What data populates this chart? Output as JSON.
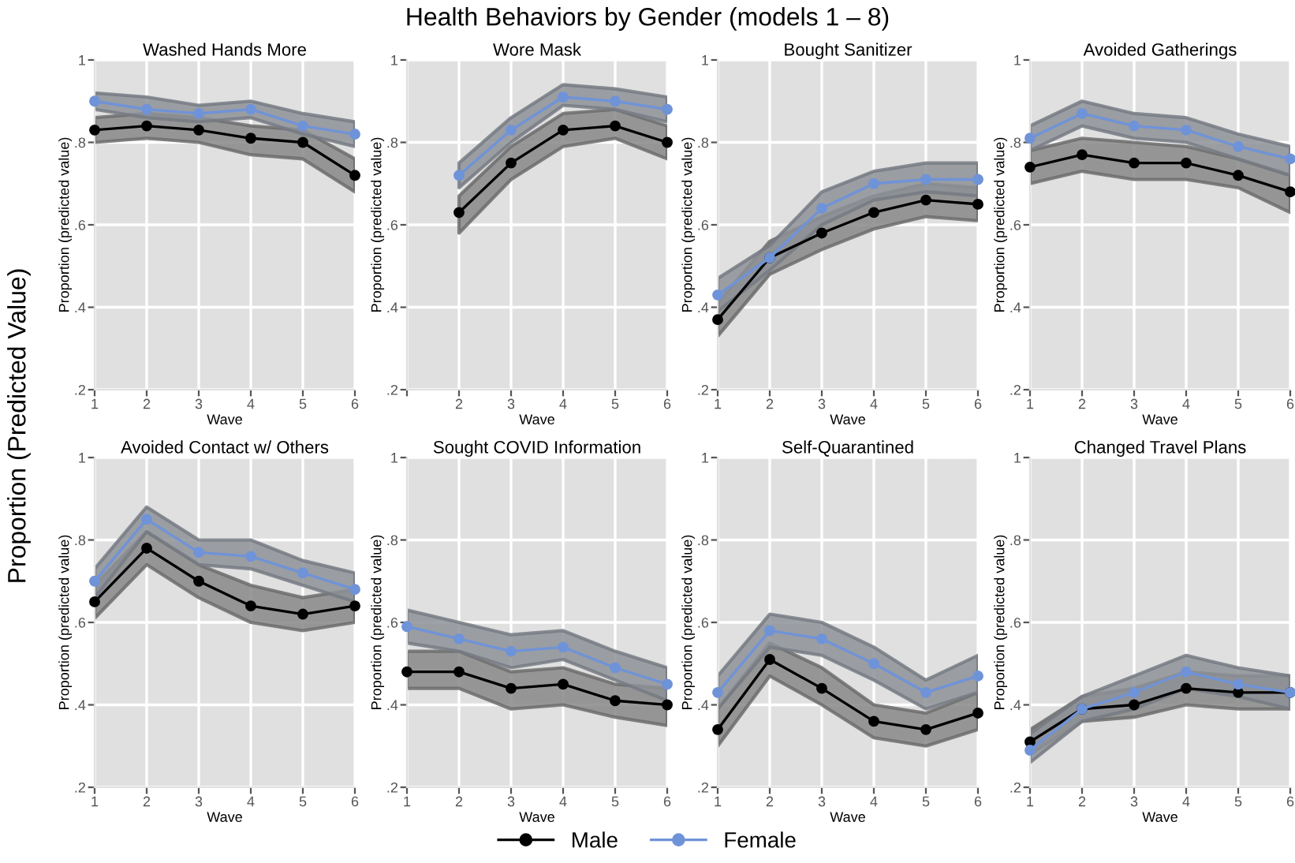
{
  "chart_data": [
    {
      "type": "line",
      "title": "Washed Hands More",
      "xlabel": "Wave",
      "legend": "bottom",
      "ylabel": "Proportion (predicted value)",
      "x": [
        1,
        2,
        3,
        4,
        5,
        6
      ],
      "xlim": [
        1,
        6
      ],
      "xticks": [
        1,
        2,
        3,
        4,
        5,
        6
      ],
      "ylim": [
        0.2,
        1
      ],
      "yticks": [
        {
          "value": 0.2,
          "label": ".2"
        },
        {
          "value": 0.4,
          "label": ".4"
        },
        {
          "value": 0.6,
          "label": ".6"
        },
        {
          "value": 0.8,
          "label": ".8"
        },
        {
          "value": 1,
          "label": "1"
        }
      ],
      "grid": true,
      "marker": "circle",
      "annotations": [
        "Health Behaviors by Gender (models 1 – 8)",
        "Proportion (Predicted Value)"
      ],
      "series": [
        {
          "name": "Male",
          "color": "#000000",
          "values": [
            0.83,
            0.84,
            0.83,
            0.81,
            0.8,
            0.72
          ],
          "lower": [
            0.8,
            0.81,
            0.8,
            0.77,
            0.76,
            0.68
          ],
          "upper": [
            0.86,
            0.87,
            0.86,
            0.84,
            0.83,
            0.76
          ]
        },
        {
          "name": "Female",
          "color": "#6f93d8",
          "values": [
            0.9,
            0.88,
            0.87,
            0.88,
            0.84,
            0.82
          ],
          "lower": [
            0.88,
            0.86,
            0.85,
            0.86,
            0.82,
            0.79
          ],
          "upper": [
            0.92,
            0.91,
            0.89,
            0.9,
            0.87,
            0.85
          ]
        }
      ]
    },
    {
      "type": "line",
      "title": "Wore Mask",
      "xlabel": "Wave",
      "ylabel": "Proportion (predicted value)",
      "xlim": [
        1,
        6
      ],
      "xticks": [
        {
          "value": 1,
          "label": null
        },
        2,
        3,
        4,
        5,
        6
      ],
      "ylim": [
        0.2,
        1
      ],
      "yticks": [
        {
          "value": 0.2,
          "label": ".2"
        },
        {
          "value": 0.4,
          "label": ".4"
        },
        {
          "value": 0.6,
          "label": ".6"
        },
        {
          "value": 0.8,
          "label": ".8"
        },
        {
          "value": 1,
          "label": "1"
        }
      ],
      "grid": true,
      "marker": "circle",
      "series": [
        {
          "color": "#000000",
          "x": [
            2,
            3,
            4,
            5,
            6
          ],
          "values": [
            0.63,
            0.75,
            0.83,
            0.84,
            0.8
          ],
          "lower": [
            0.58,
            0.71,
            0.79,
            0.81,
            0.76
          ],
          "upper": [
            0.67,
            0.79,
            0.87,
            0.88,
            0.84
          ]
        },
        {
          "color": "#6f93d8",
          "x": [
            2,
            3,
            4,
            5,
            6
          ],
          "values": [
            0.72,
            0.83,
            0.91,
            0.9,
            0.88
          ],
          "lower": [
            0.69,
            0.8,
            0.89,
            0.88,
            0.85
          ],
          "upper": [
            0.75,
            0.86,
            0.94,
            0.93,
            0.91
          ]
        }
      ]
    },
    {
      "type": "line",
      "title": "Bought Sanitizer",
      "xlabel": "Wave",
      "ylabel": "Proportion (predicted value)",
      "x": [
        1,
        2,
        3,
        4,
        5,
        6
      ],
      "xlim": [
        1,
        6
      ],
      "xticks": [
        1,
        2,
        3,
        4,
        5,
        6
      ],
      "ylim": [
        0.2,
        1
      ],
      "yticks": [
        {
          "value": 0.2,
          "label": ".2"
        },
        {
          "value": 0.4,
          "label": ".4"
        },
        {
          "value": 0.6,
          "label": ".6"
        },
        {
          "value": 0.8,
          "label": ".8"
        },
        {
          "value": 1,
          "label": "1"
        }
      ],
      "grid": true,
      "marker": "circle",
      "series": [
        {
          "color": "#000000",
          "values": [
            0.37,
            0.52,
            0.58,
            0.63,
            0.66,
            0.65
          ],
          "lower": [
            0.33,
            0.48,
            0.54,
            0.59,
            0.62,
            0.61
          ],
          "upper": [
            0.41,
            0.56,
            0.62,
            0.67,
            0.7,
            0.69
          ]
        },
        {
          "color": "#6f93d8",
          "values": [
            0.43,
            0.52,
            0.64,
            0.7,
            0.71,
            0.71
          ],
          "lower": [
            0.39,
            0.49,
            0.6,
            0.66,
            0.68,
            0.67
          ],
          "upper": [
            0.47,
            0.55,
            0.68,
            0.73,
            0.75,
            0.75
          ]
        }
      ]
    },
    {
      "type": "line",
      "title": "Avoided Gatherings",
      "xlabel": "Wave",
      "ylabel": "Proportion (predicted value)",
      "x": [
        1,
        2,
        3,
        4,
        5,
        6
      ],
      "xlim": [
        1,
        6
      ],
      "xticks": [
        1,
        2,
        3,
        4,
        5,
        6
      ],
      "ylim": [
        0.2,
        1
      ],
      "yticks": [
        {
          "value": 0.2,
          "label": ".2"
        },
        {
          "value": 0.4,
          "label": ".4"
        },
        {
          "value": 0.6,
          "label": ".6"
        },
        {
          "value": 0.8,
          "label": ".8"
        },
        {
          "value": 1,
          "label": "1"
        }
      ],
      "grid": true,
      "marker": "circle",
      "series": [
        {
          "color": "#000000",
          "values": [
            0.74,
            0.77,
            0.75,
            0.75,
            0.72,
            0.68
          ],
          "lower": [
            0.7,
            0.73,
            0.71,
            0.71,
            0.69,
            0.63
          ],
          "upper": [
            0.78,
            0.81,
            0.8,
            0.79,
            0.76,
            0.72
          ]
        },
        {
          "color": "#6f93d8",
          "values": [
            0.81,
            0.87,
            0.84,
            0.83,
            0.79,
            0.76
          ],
          "lower": [
            0.78,
            0.84,
            0.81,
            0.8,
            0.76,
            0.72
          ],
          "upper": [
            0.84,
            0.9,
            0.87,
            0.86,
            0.82,
            0.79
          ]
        }
      ]
    },
    {
      "type": "line",
      "title": "Avoided Contact w/ Others",
      "xlabel": "Wave",
      "ylabel": "Proportion (predicted value)",
      "x": [
        1,
        2,
        3,
        4,
        5,
        6
      ],
      "xlim": [
        1,
        6
      ],
      "xticks": [
        1,
        2,
        3,
        4,
        5,
        6
      ],
      "ylim": [
        0.2,
        1
      ],
      "yticks": [
        {
          "value": 0.2,
          "label": ".2"
        },
        {
          "value": 0.4,
          "label": ".4"
        },
        {
          "value": 0.6,
          "label": ".6"
        },
        {
          "value": 0.8,
          "label": ".8"
        },
        {
          "value": 1,
          "label": "1"
        }
      ],
      "grid": true,
      "marker": "circle",
      "series": [
        {
          "color": "#000000",
          "values": [
            0.65,
            0.78,
            0.7,
            0.64,
            0.62,
            0.64
          ],
          "lower": [
            0.61,
            0.74,
            0.66,
            0.6,
            0.58,
            0.6
          ],
          "upper": [
            0.69,
            0.82,
            0.74,
            0.69,
            0.66,
            0.68
          ]
        },
        {
          "color": "#6f93d8",
          "values": [
            0.7,
            0.85,
            0.77,
            0.76,
            0.72,
            0.68
          ],
          "lower": [
            0.66,
            0.82,
            0.74,
            0.73,
            0.69,
            0.65
          ],
          "upper": [
            0.73,
            0.88,
            0.8,
            0.8,
            0.75,
            0.72
          ]
        }
      ]
    },
    {
      "type": "line",
      "title": "Sought COVID Information",
      "xlabel": "Wave",
      "ylabel": "Proportion (predicted value)",
      "x": [
        1,
        2,
        3,
        4,
        5,
        6
      ],
      "xlim": [
        1,
        6
      ],
      "xticks": [
        1,
        2,
        3,
        4,
        5,
        6
      ],
      "ylim": [
        0.2,
        1
      ],
      "yticks": [
        {
          "value": 0.2,
          "label": ".2"
        },
        {
          "value": 0.4,
          "label": ".4"
        },
        {
          "value": 0.6,
          "label": ".6"
        },
        {
          "value": 0.8,
          "label": ".8"
        },
        {
          "value": 1,
          "label": "1"
        }
      ],
      "grid": true,
      "marker": "circle",
      "series": [
        {
          "color": "#000000",
          "values": [
            0.48,
            0.48,
            0.44,
            0.45,
            0.41,
            0.4
          ],
          "lower": [
            0.44,
            0.44,
            0.39,
            0.4,
            0.37,
            0.35
          ],
          "upper": [
            0.53,
            0.53,
            0.48,
            0.49,
            0.45,
            0.44
          ]
        },
        {
          "color": "#6f93d8",
          "values": [
            0.59,
            0.56,
            0.53,
            0.54,
            0.49,
            0.45
          ],
          "lower": [
            0.55,
            0.53,
            0.49,
            0.51,
            0.46,
            0.41
          ],
          "upper": [
            0.63,
            0.6,
            0.57,
            0.58,
            0.53,
            0.49
          ]
        }
      ]
    },
    {
      "type": "line",
      "title": "Self-Quarantined",
      "xlabel": "Wave",
      "ylabel": "Proportion (predicted value)",
      "x": [
        1,
        2,
        3,
        4,
        5,
        6
      ],
      "xlim": [
        1,
        6
      ],
      "xticks": [
        1,
        2,
        3,
        4,
        5,
        6
      ],
      "ylim": [
        0.2,
        1
      ],
      "yticks": [
        {
          "value": 0.2,
          "label": ".2"
        },
        {
          "value": 0.4,
          "label": ".4"
        },
        {
          "value": 0.6,
          "label": ".6"
        },
        {
          "value": 0.8,
          "label": ".8"
        },
        {
          "value": 1,
          "label": "1"
        }
      ],
      "grid": true,
      "marker": "circle",
      "series": [
        {
          "color": "#000000",
          "values": [
            0.34,
            0.51,
            0.44,
            0.36,
            0.34,
            0.38
          ],
          "lower": [
            0.3,
            0.47,
            0.4,
            0.32,
            0.3,
            0.34
          ],
          "upper": [
            0.39,
            0.55,
            0.49,
            0.4,
            0.38,
            0.43
          ]
        },
        {
          "color": "#6f93d8",
          "values": [
            0.43,
            0.58,
            0.56,
            0.5,
            0.43,
            0.47
          ],
          "lower": [
            0.39,
            0.54,
            0.52,
            0.46,
            0.39,
            0.43
          ],
          "upper": [
            0.47,
            0.62,
            0.6,
            0.54,
            0.46,
            0.52
          ]
        }
      ]
    },
    {
      "type": "line",
      "title": "Changed Travel Plans",
      "xlabel": "Wave",
      "ylabel": "Proportion (predicted value)",
      "x": [
        1,
        2,
        3,
        4,
        5,
        6
      ],
      "xlim": [
        1,
        6
      ],
      "xticks": [
        1,
        2,
        3,
        4,
        5,
        6
      ],
      "ylim": [
        0.2,
        1
      ],
      "yticks": [
        {
          "value": 0.2,
          "label": ".2"
        },
        {
          "value": 0.4,
          "label": ".4"
        },
        {
          "value": 0.6,
          "label": ".6"
        },
        {
          "value": 0.8,
          "label": ".8"
        },
        {
          "value": 1,
          "label": "1"
        }
      ],
      "grid": true,
      "marker": "circle",
      "series": [
        {
          "color": "#000000",
          "values": [
            0.31,
            0.39,
            0.4,
            0.44,
            0.43,
            0.43
          ],
          "lower": [
            0.28,
            0.36,
            0.37,
            0.4,
            0.39,
            0.39
          ],
          "upper": [
            0.34,
            0.42,
            0.44,
            0.48,
            0.47,
            0.47
          ]
        },
        {
          "color": "#6f93d8",
          "values": [
            0.29,
            0.39,
            0.43,
            0.48,
            0.45,
            0.43
          ],
          "lower": [
            0.26,
            0.36,
            0.39,
            0.44,
            0.42,
            0.39
          ],
          "upper": [
            0.33,
            0.42,
            0.47,
            0.52,
            0.49,
            0.47
          ]
        }
      ]
    }
  ]
}
